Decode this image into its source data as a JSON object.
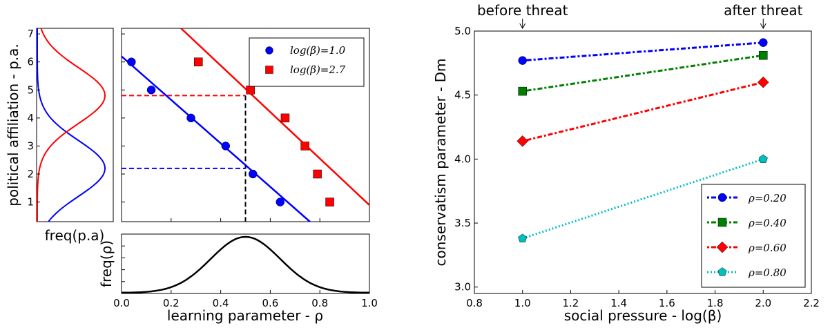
{
  "chart_data": [
    {
      "id": "marginal_pa",
      "type": "line",
      "xlabel": "freq(p.a)",
      "ylabel": "political affiliation - p.a.",
      "ylim": [
        0.3,
        7.2
      ],
      "y_ticks": [
        "1",
        "2",
        "3",
        "4",
        "5",
        "6",
        "7"
      ],
      "series": [
        {
          "color": "#0000ff",
          "density": "gaussian",
          "mean": 2.2,
          "sd": 1.0
        },
        {
          "color": "#ff0000",
          "density": "gaussian",
          "mean": 4.8,
          "sd": 1.0
        }
      ],
      "grid": false
    },
    {
      "id": "scatter_rho",
      "type": "scatter",
      "xlim": [
        0.0,
        1.0
      ],
      "ylim": [
        0.3,
        7.2
      ],
      "legend_position": "top-right",
      "series": [
        {
          "name": "log(β)=1.0",
          "color": "#0000ff",
          "marker": "circle",
          "points": [
            [
              0.04,
              6.0
            ],
            [
              0.12,
              5.0
            ],
            [
              0.28,
              4.0
            ],
            [
              0.42,
              3.0
            ],
            [
              0.53,
              2.0
            ],
            [
              0.64,
              1.0
            ]
          ],
          "fit_line": {
            "x": [
              0.0,
              0.76
            ],
            "y": [
              6.2,
              0.3
            ]
          }
        },
        {
          "name": "log(β)=2.7",
          "color": "#ff0000",
          "marker": "square",
          "points": [
            [
              0.31,
              6.0
            ],
            [
              0.52,
              5.0
            ],
            [
              0.66,
              4.0
            ],
            [
              0.74,
              3.0
            ],
            [
              0.79,
              2.0
            ],
            [
              0.84,
              1.0
            ]
          ],
          "fit_line": {
            "x": [
              0.24,
              0.999
            ],
            "y": [
              7.2,
              0.9
            ]
          }
        }
      ],
      "guides": {
        "vertical_x": 0.5,
        "horizontal": [
          {
            "y": 4.8,
            "color": "#ff0000"
          },
          {
            "y": 2.2,
            "color": "#0000ff"
          }
        ]
      },
      "grid": false
    },
    {
      "id": "marginal_rho",
      "type": "line",
      "xlabel": "learning parameter - ρ",
      "ylabel": "freq(ρ)",
      "xlim": [
        0.0,
        1.0
      ],
      "x_ticks": [
        "0.0",
        "0.2",
        "0.4",
        "0.6",
        "0.8",
        "1.0"
      ],
      "series": [
        {
          "color": "#000000",
          "density": "gaussian",
          "mean": 0.5,
          "sd": 0.14
        }
      ],
      "grid": false
    },
    {
      "id": "conservatism",
      "type": "line",
      "xlabel": "social pressure - log(β)",
      "ylabel": "conservatism parameter - Dm",
      "xlim": [
        0.8,
        2.2
      ],
      "ylim": [
        2.95,
        5.0
      ],
      "x_ticks": [
        "0.8",
        "1.0",
        "1.2",
        "1.4",
        "1.6",
        "1.8",
        "2.0",
        "2.2"
      ],
      "y_ticks": [
        "3.0",
        "3.5",
        "4.0",
        "4.5",
        "5.0"
      ],
      "legend_position": "bottom-right",
      "annotations": [
        {
          "text": "before threat",
          "x": 1.0
        },
        {
          "text": "after threat",
          "x": 2.0
        }
      ],
      "series": [
        {
          "name": "ρ=0.20",
          "color": "#0000ff",
          "marker": "circle",
          "x": [
            1.0,
            2.0
          ],
          "values": [
            4.77,
            4.91
          ]
        },
        {
          "name": "ρ=0.40",
          "color": "#008000",
          "marker": "square",
          "x": [
            1.0,
            2.0
          ],
          "values": [
            4.53,
            4.81
          ]
        },
        {
          "name": "ρ=0.60",
          "color": "#ff0000",
          "marker": "diamond",
          "x": [
            1.0,
            2.0
          ],
          "values": [
            4.14,
            4.6
          ]
        },
        {
          "name": "ρ=0.80",
          "color": "#00bfbf",
          "marker": "pentagon",
          "x": [
            1.0,
            2.0
          ],
          "values": [
            3.38,
            4.0
          ]
        }
      ],
      "grid": false
    }
  ]
}
